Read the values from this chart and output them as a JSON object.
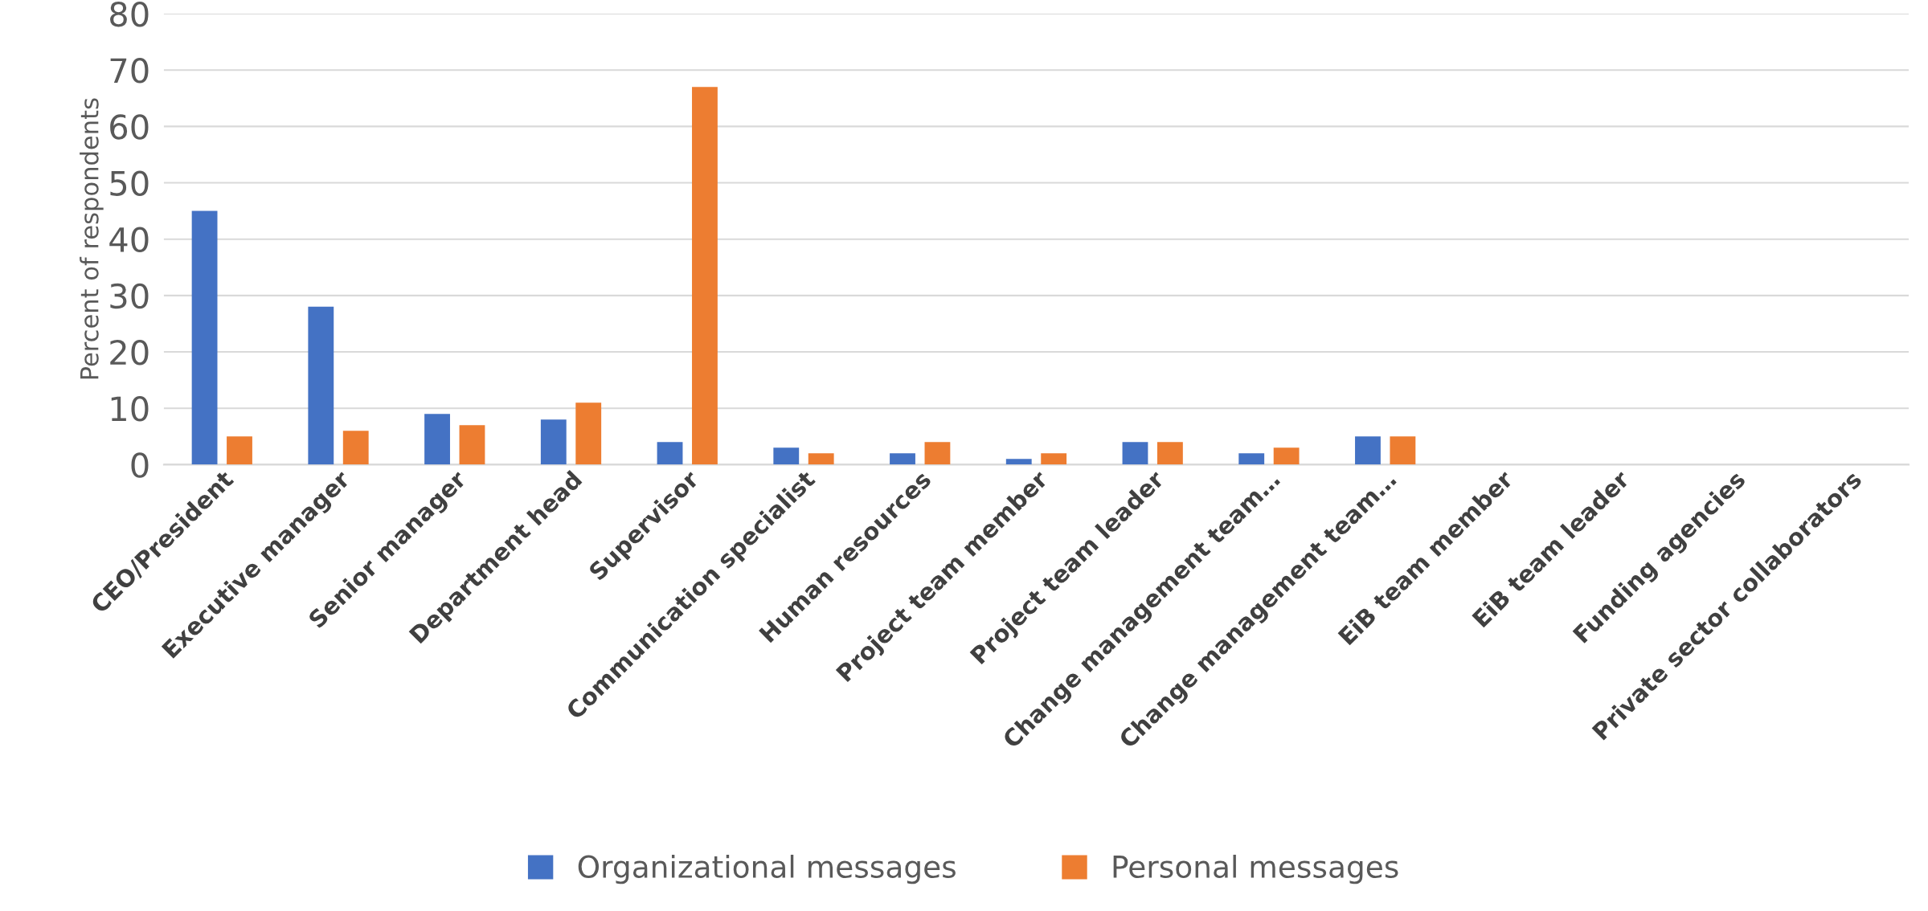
{
  "chart_data": {
    "type": "bar",
    "ylabel": "Percent of respondents",
    "categories": [
      "CEO/President",
      "Executive manager",
      "Senior manager",
      "Department head",
      "Supervisor",
      "Communication specialist",
      "Human resources",
      "Project team member",
      "Project team leader",
      "Change management team…",
      "Change management team…",
      "EiB team member",
      "EiB team leader",
      "Funding agencies",
      "Private sector collaborators"
    ],
    "series": [
      {
        "name": "Organizational messages",
        "color": "#4472c4",
        "values": [
          45,
          28,
          9,
          8,
          4,
          3,
          2,
          1,
          4,
          2,
          5,
          0,
          0,
          0,
          0
        ]
      },
      {
        "name": "Personal messages",
        "color": "#ed7d31",
        "values": [
          5,
          6,
          7,
          11,
          67,
          2,
          4,
          2,
          4,
          3,
          5,
          0,
          0,
          0,
          0
        ]
      }
    ],
    "ylim": [
      0,
      80
    ],
    "yticks": [
      0,
      10,
      20,
      30,
      40,
      50,
      60,
      70,
      80
    ],
    "grid": "y",
    "legend": "bottom"
  }
}
